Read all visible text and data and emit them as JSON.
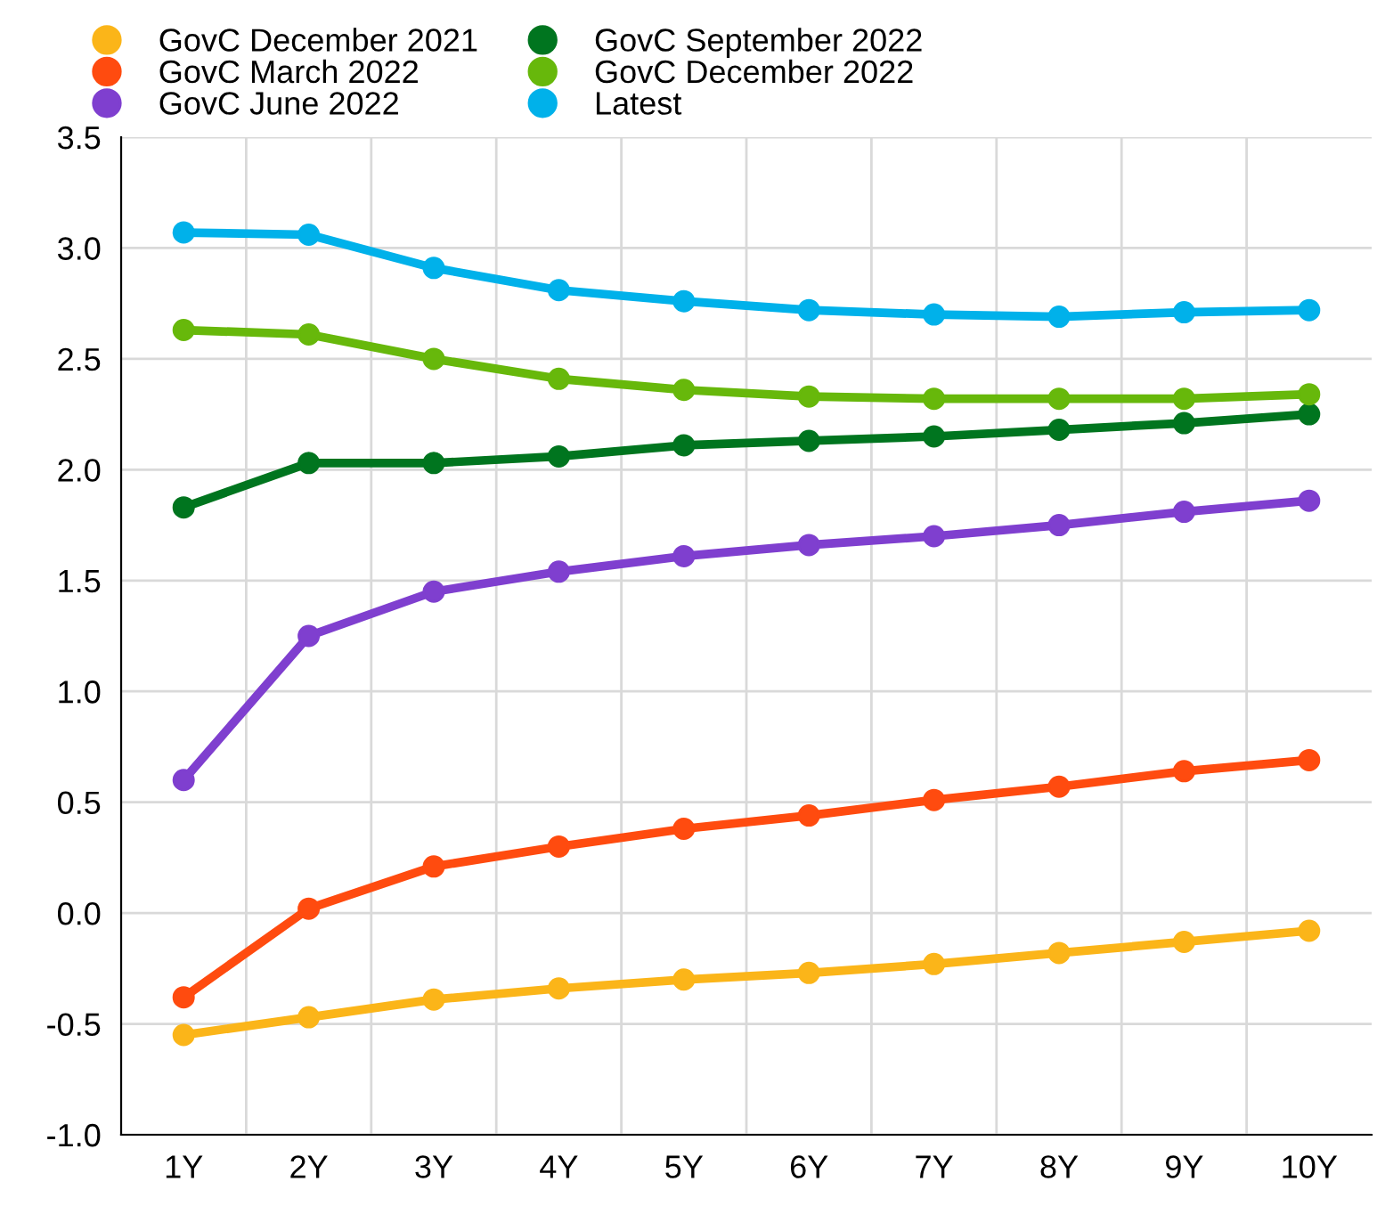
{
  "chart_data": {
    "type": "line",
    "categories": [
      "1Y",
      "2Y",
      "3Y",
      "4Y",
      "5Y",
      "6Y",
      "7Y",
      "8Y",
      "9Y",
      "10Y"
    ],
    "series": [
      {
        "name": "GovC December 2021",
        "color": "#fbb519",
        "values": [
          -0.55,
          -0.47,
          -0.39,
          -0.34,
          -0.3,
          -0.27,
          -0.23,
          -0.18,
          -0.13,
          -0.08
        ]
      },
      {
        "name": "GovC March 2022",
        "color": "#ff4b0f",
        "values": [
          -0.38,
          0.02,
          0.21,
          0.3,
          0.38,
          0.44,
          0.51,
          0.57,
          0.64,
          0.69
        ]
      },
      {
        "name": "GovC June 2022",
        "color": "#7f3fcf",
        "values": [
          0.6,
          1.25,
          1.45,
          1.54,
          1.61,
          1.66,
          1.7,
          1.75,
          1.81,
          1.86
        ]
      },
      {
        "name": "GovC September 2022",
        "color": "#00751f",
        "values": [
          1.83,
          2.03,
          2.03,
          2.06,
          2.11,
          2.13,
          2.15,
          2.18,
          2.21,
          2.25
        ]
      },
      {
        "name": "GovC December 2022",
        "color": "#67b80b",
        "values": [
          2.63,
          2.61,
          2.5,
          2.41,
          2.36,
          2.33,
          2.32,
          2.32,
          2.32,
          2.34
        ]
      },
      {
        "name": "Latest",
        "color": "#00b1ea",
        "values": [
          3.07,
          3.06,
          2.91,
          2.81,
          2.76,
          2.72,
          2.7,
          2.69,
          2.71,
          2.72
        ]
      }
    ],
    "ylim": [
      -1.0,
      3.5
    ],
    "yticks": [
      {
        "value": -1.0,
        "label": "-1.0"
      },
      {
        "value": -0.5,
        "label": "-0.5"
      },
      {
        "value": 0.0,
        "label": "0.0"
      },
      {
        "value": 0.5,
        "label": "0.5"
      },
      {
        "value": 1.0,
        "label": "1.0"
      },
      {
        "value": 1.5,
        "label": "1.5"
      },
      {
        "value": 2.0,
        "label": "2.0"
      },
      {
        "value": 2.5,
        "label": "2.5"
      },
      {
        "value": 3.0,
        "label": "3.0"
      },
      {
        "value": 3.5,
        "label": "3.5"
      }
    ],
    "grid": true,
    "legend": "top",
    "marker": "circle",
    "line_style": "solid"
  }
}
